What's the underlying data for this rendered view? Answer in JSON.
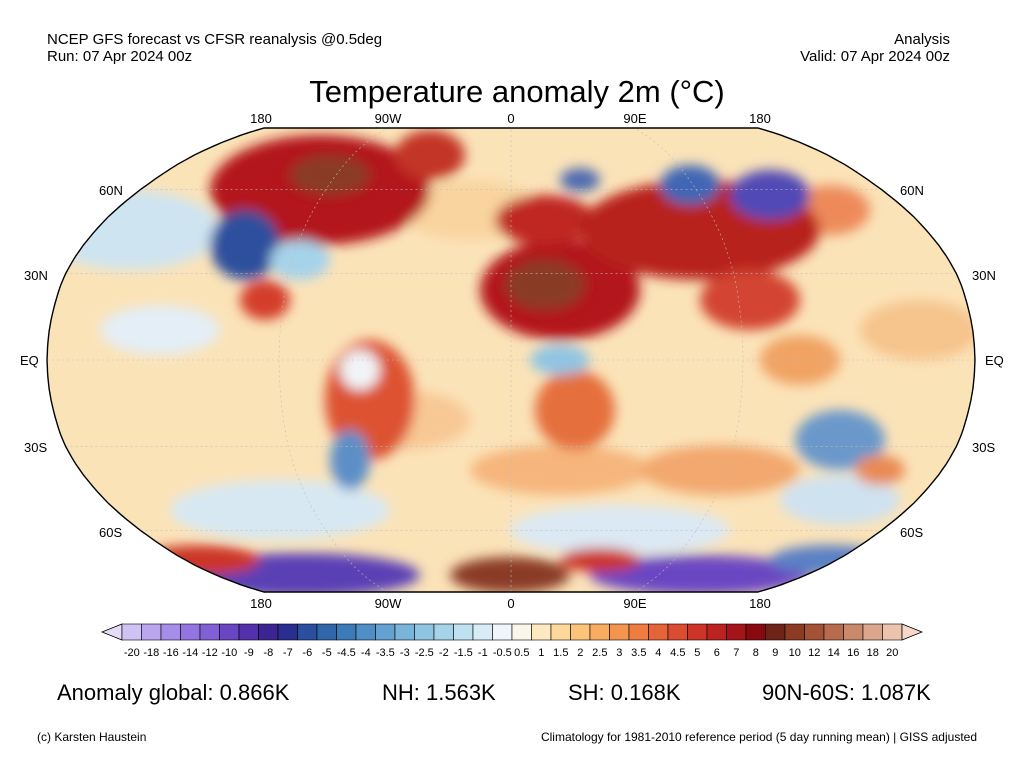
{
  "header": {
    "source_line": "NCEP GFS forecast vs CFSR reanalysis @0.5deg",
    "run_line": "Run: 07 Apr 2024 00z",
    "type_line": "Analysis",
    "valid_line": "Valid: 07 Apr 2024 00z"
  },
  "title": "Temperature anomaly 2m (°C)",
  "map": {
    "projection": "Robinson",
    "lon_labels_top": [
      "180",
      "90W",
      "0",
      "90E",
      "180"
    ],
    "lon_labels_bottom": [
      "180",
      "90W",
      "0",
      "90E",
      "180"
    ],
    "lat_labels_left": [
      "60N",
      "30N",
      "EQ",
      "30S",
      "60S"
    ],
    "lat_labels_right": [
      "60N",
      "30N",
      "EQ",
      "30S",
      "60S"
    ]
  },
  "colorbar": {
    "labels": [
      "-20",
      "-18",
      "-16",
      "-14",
      "-12",
      "-10",
      "-9",
      "-8",
      "-7",
      "-6",
      "-5",
      "-4.5",
      "-4",
      "-3.5",
      "-3",
      "-2.5",
      "-2",
      "-1.5",
      "-1",
      "-0.5",
      "0.5",
      "1",
      "1.5",
      "2",
      "2.5",
      "3",
      "3.5",
      "4",
      "4.5",
      "5",
      "6",
      "7",
      "8",
      "9",
      "10",
      "12",
      "14",
      "16",
      "18",
      "20"
    ],
    "colors": [
      "#cfc2f5",
      "#b9a6ee",
      "#a68de8",
      "#9475e0",
      "#8060d4",
      "#6a46c2",
      "#5331ab",
      "#3c2593",
      "#2a2f8f",
      "#2b4f9d",
      "#3066aa",
      "#3d7bb8",
      "#4f8fc5",
      "#63a2d0",
      "#79b5da",
      "#8fc5e3",
      "#a6d3ea",
      "#bfe1f1",
      "#d8ecf7",
      "#eef6fb",
      "#fbf6ea",
      "#fde9bf",
      "#fcd99b",
      "#fbc47a",
      "#f8ad62",
      "#f4954e",
      "#ee7d41",
      "#e56538",
      "#da4d30",
      "#cc3528",
      "#bb2220",
      "#a51418",
      "#880a10",
      "#6e2418",
      "#8b3a24",
      "#a45236",
      "#b76c4e",
      "#c98a6c",
      "#dba68c",
      "#ecc4ad"
    ],
    "low_arrow_color": "#e6dcfa",
    "high_arrow_color": "#f6d8c8"
  },
  "stats": {
    "global": "Anomaly global: 0.866K",
    "nh": "NH: 1.563K",
    "sh": "SH: 0.168K",
    "arctic": "90N-60S: 1.087K"
  },
  "footer": {
    "credit": "(c) Karsten Haustein",
    "note": "Climatology for 1981-2010 reference period (5 day running mean) | GISS adjusted"
  }
}
